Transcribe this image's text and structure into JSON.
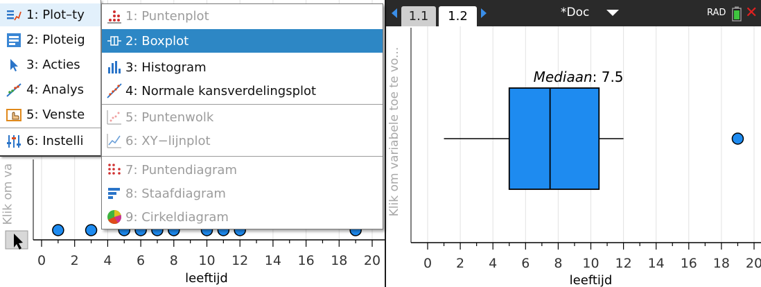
{
  "left_plot": {
    "y_label": "Klik om va",
    "x_label": "leeftijd",
    "x_ticks": [
      "0",
      "2",
      "4",
      "6",
      "8",
      "10",
      "12",
      "14",
      "16",
      "18",
      "20"
    ],
    "points": [
      1,
      3,
      5,
      6,
      7,
      8,
      10,
      11,
      12,
      19
    ],
    "xlim": [
      0,
      20
    ]
  },
  "main_menu": {
    "items": [
      {
        "label": "1: Plot–ty",
        "icon": "plot-type-icon"
      },
      {
        "label": "2: Ploteig",
        "icon": "plot-properties-icon"
      },
      {
        "label": "3: Acties",
        "icon": "actions-cursor-icon"
      },
      {
        "label": "4: Analys",
        "icon": "analyze-icon"
      },
      {
        "label": "5: Venste",
        "icon": "window-zoom-icon"
      },
      {
        "label": "6: Instelli",
        "icon": "settings-sliders-icon"
      }
    ]
  },
  "sub_menu": {
    "items": [
      {
        "label": "1: Puntenplot",
        "icon": "dot-plot-icon",
        "disabled": true
      },
      {
        "label": "2: Boxplot",
        "icon": "box-plot-icon",
        "highlighted": true
      },
      {
        "label": "3: Histogram",
        "icon": "histogram-icon"
      },
      {
        "label": "4: Normale kansverdelingsplot",
        "icon": "normal-probability-plot-icon"
      },
      {
        "label": "5: Puntenwolk",
        "icon": "scatter-plot-icon",
        "disabled": true
      },
      {
        "label": "6: XY−lijnplot",
        "icon": "xy-line-plot-icon",
        "disabled": true
      },
      {
        "label": "7: Puntendiagram",
        "icon": "dot-chart-icon",
        "disabled": true
      },
      {
        "label": "8: Staafdiagram",
        "icon": "bar-chart-icon",
        "disabled": true
      },
      {
        "label": "9: Cirkeldiagram",
        "icon": "pie-chart-icon",
        "disabled": true
      }
    ]
  },
  "header": {
    "tabs": [
      "1.1",
      "1.2"
    ],
    "doc_title": "*Doc",
    "angle_mode": "RAD"
  },
  "colors": {
    "point_fill": "#1e8bf0",
    "box_fill": "#1e8bf0",
    "menu_highlight": "#2d87c5",
    "header_bg": "#2a2a2a"
  },
  "chart_data": {
    "type": "boxplot",
    "x_label": "leeftijd",
    "y_label": "Klik om variabele toe te vo...",
    "x_ticks": [
      "0",
      "2",
      "4",
      "6",
      "8",
      "10",
      "12",
      "14",
      "16",
      "18",
      "20"
    ],
    "xlim": [
      0,
      20
    ],
    "annotation_label": "Mediaan",
    "annotation_value": "7.5",
    "whisker_min": 1,
    "q1": 5,
    "median": 7.5,
    "q3": 10.5,
    "whisker_max": 12,
    "outliers": [
      19
    ]
  }
}
